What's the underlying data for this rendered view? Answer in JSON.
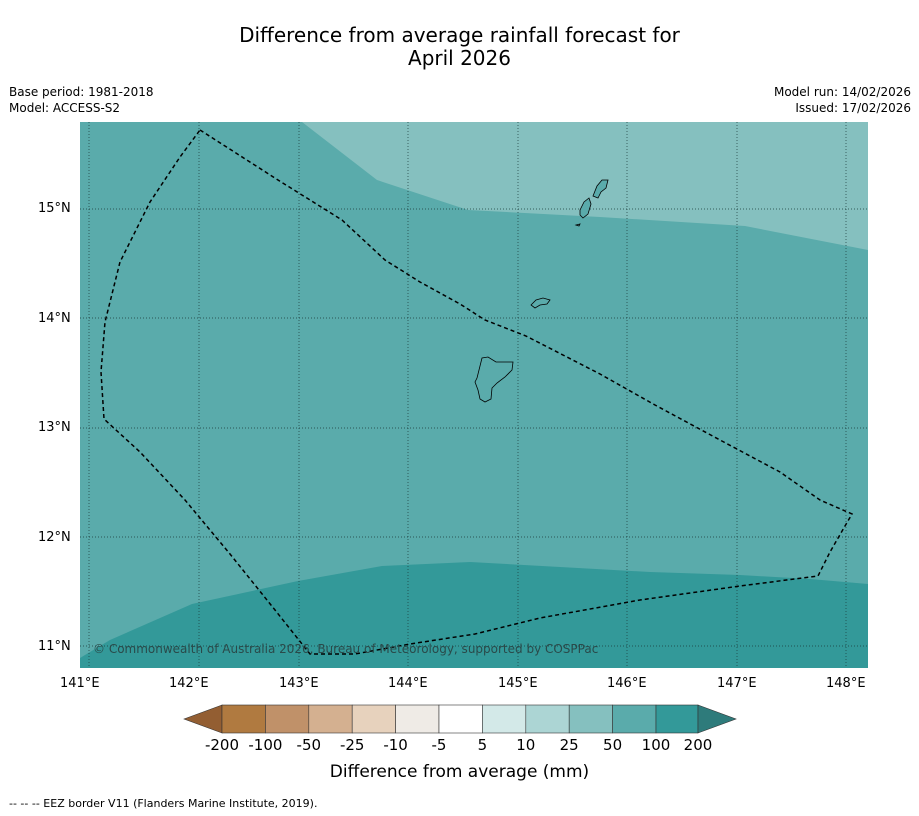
{
  "title": {
    "line1": "Difference from average rainfall forecast for",
    "line2": "April 2026"
  },
  "meta": {
    "base_period": "Base period: 1981-2018",
    "model": "Model: ACCESS-S2",
    "model_run": "Model run: 14/02/2026",
    "issued": "Issued: 17/02/2026"
  },
  "map": {
    "copyright": "© Commonwealth of Australia 2026, Bureau of Meteorology, supported by COSPPac",
    "x_ticks": [
      "141°E",
      "142°E",
      "143°E",
      "144°E",
      "145°E",
      "146°E",
      "147°E",
      "148°E"
    ],
    "y_ticks": [
      "15°N",
      "14°N",
      "13°N",
      "12°N",
      "11°N"
    ],
    "colors": {
      "class_50_100": "#5aabab",
      "class_25_50": "#85c0bf",
      "class_100_200": "#339999",
      "grid": "#1a3a3a",
      "border": "#000000",
      "land": "#5aabab"
    }
  },
  "colorbar": {
    "label": "Difference from average (mm)",
    "ticks": [
      "-200",
      "-100",
      "-50",
      "-25",
      "-10",
      "-5",
      "5",
      "10",
      "25",
      "50",
      "100",
      "200"
    ],
    "colors": [
      "#935e32",
      "#b07a40",
      "#c09169",
      "#d4b090",
      "#e7d2bd",
      "#efebe6",
      "#ffffff",
      "#d3e9e8",
      "#acd5d4",
      "#85c0bf",
      "#5aabab",
      "#339999",
      "#2e7b7b"
    ]
  },
  "footer": {
    "legend": "--  --  -- EEZ border V11 (Flanders Marine Institute, 2019)."
  }
}
